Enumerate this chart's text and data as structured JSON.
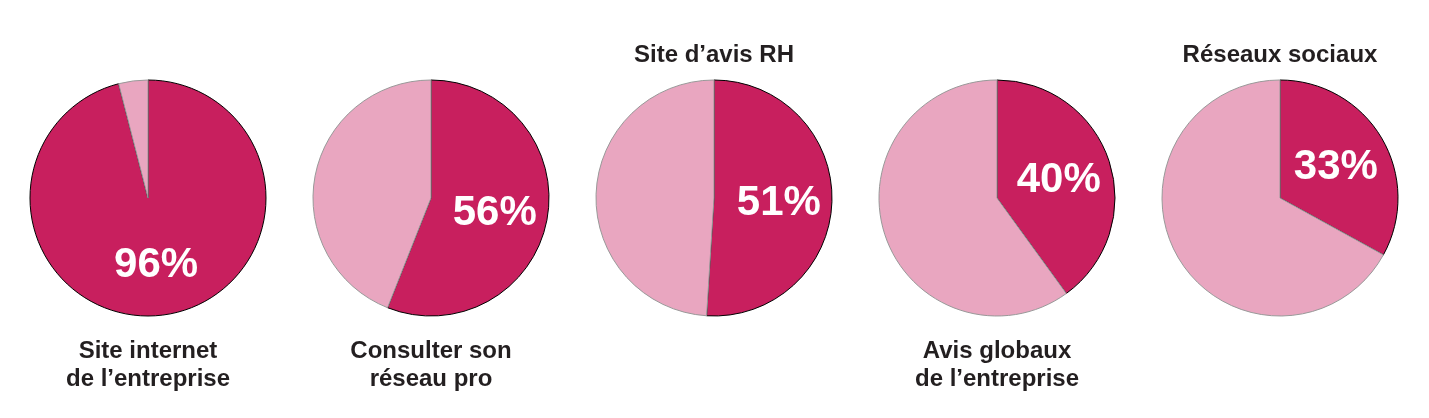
{
  "chart_data": [
    {
      "type": "pie",
      "title": "Site internet\nde l’entreprise",
      "categories": [
        null,
        null
      ],
      "values": [
        96,
        4
      ],
      "colors": [
        "#c81f5e",
        "#e9a6c0"
      ],
      "value_labels": [
        "96%",
        null
      ]
    },
    {
      "type": "pie",
      "title": "Consulter son\nréseau pro",
      "categories": [
        null,
        null
      ],
      "values": [
        56,
        44
      ],
      "colors": [
        "#c81f5e",
        "#e9a6c0"
      ],
      "value_labels": [
        "56%",
        null
      ]
    },
    {
      "type": "pie",
      "title": "Site d’avis RH",
      "categories": [
        null,
        null
      ],
      "values": [
        51,
        49
      ],
      "colors": [
        "#c81f5e",
        "#e9a6c0"
      ],
      "value_labels": [
        "51%",
        null
      ]
    },
    {
      "type": "pie",
      "title": "Avis globaux\nde l’entreprise",
      "categories": [
        null,
        null
      ],
      "values": [
        40,
        60
      ],
      "colors": [
        "#c81f5e",
        "#e9a6c0"
      ],
      "value_labels": [
        "40%",
        null
      ]
    },
    {
      "type": "pie",
      "title": "Réseaux sociaux",
      "categories": [
        null,
        null
      ],
      "values": [
        33,
        67
      ],
      "colors": [
        "#c81f5e",
        "#e9a6c0"
      ],
      "value_labels": [
        "33%",
        null
      ]
    }
  ]
}
